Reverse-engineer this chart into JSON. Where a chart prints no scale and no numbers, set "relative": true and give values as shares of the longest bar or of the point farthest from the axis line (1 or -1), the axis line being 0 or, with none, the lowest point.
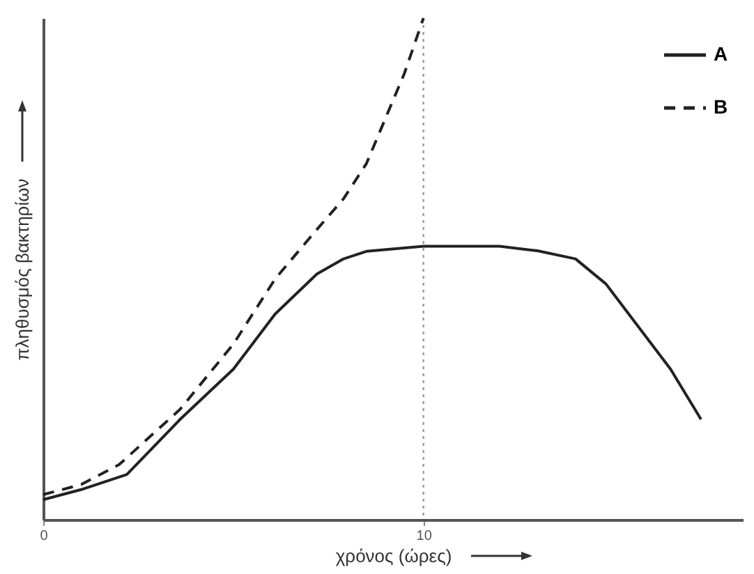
{
  "chart_data": {
    "type": "line",
    "relative": true,
    "xlabel": "χρόνος (ώρες)",
    "ylabel": "πληθυσμός βακτηρίων",
    "xlim": [
      0,
      18.4
    ],
    "xticks": [
      0,
      10
    ],
    "grid": false,
    "legend": "top right",
    "marker": "none",
    "series": [
      {
        "name": "A",
        "color": "#222222",
        "line_style": "solid",
        "x": [
          0,
          1,
          2.2,
          3.6,
          5,
          6.1,
          7.2,
          7.9,
          8.5,
          10,
          12,
          13,
          14,
          14.8,
          15.6,
          16.5,
          17.3
        ],
        "values": [
          0.04,
          0.06,
          0.09,
          0.2,
          0.3,
          0.41,
          0.49,
          0.52,
          0.535,
          0.545,
          0.545,
          0.536,
          0.52,
          0.47,
          0.39,
          0.3,
          0.2
        ]
      },
      {
        "name": "B",
        "color": "#222222",
        "line_style": "dashed",
        "x": [
          0,
          1,
          2,
          3.6,
          5,
          6.1,
          7.1,
          7.9,
          8.5,
          9,
          9.5,
          10
        ],
        "values": [
          0.05,
          0.07,
          0.11,
          0.22,
          0.35,
          0.48,
          0.57,
          0.64,
          0.71,
          0.8,
          0.89,
          1.0
        ]
      }
    ],
    "ref_lines": [
      {
        "axis": "x",
        "value": 10,
        "color": "#999999",
        "line_style": "dotted"
      }
    ]
  }
}
